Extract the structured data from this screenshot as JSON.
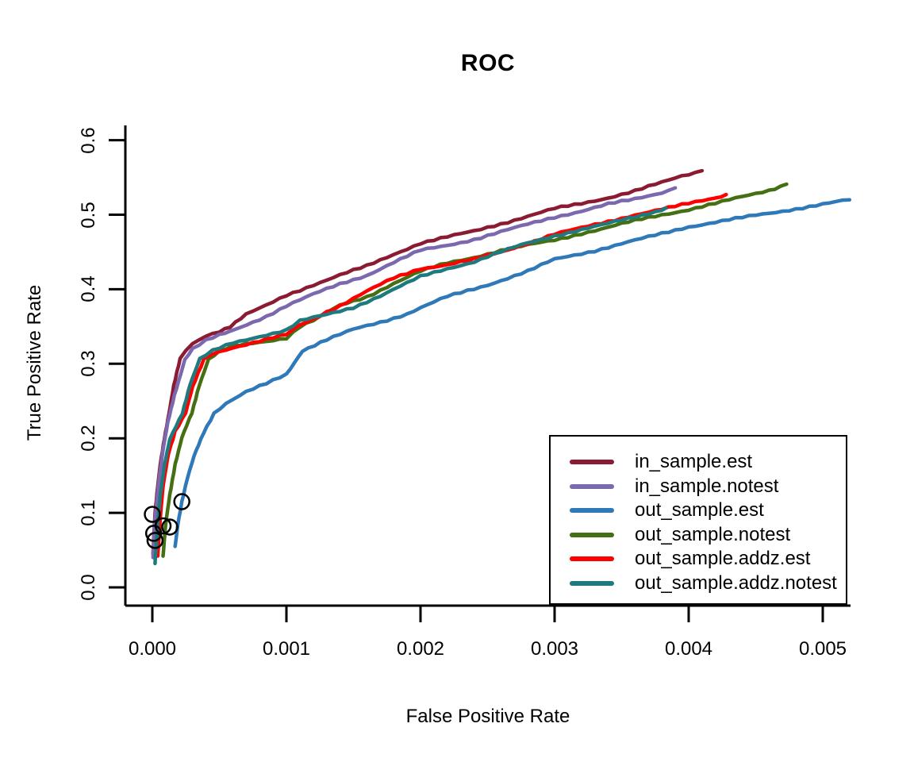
{
  "chart_data": {
    "type": "line",
    "title": "ROC",
    "xlabel": "False Positive Rate",
    "ylabel": "True Positive Rate",
    "xlim": [
      -0.0002,
      0.0052
    ],
    "ylim": [
      0.0,
      0.62
    ],
    "grid": false,
    "legend_position": "bottom-right",
    "axis_color": "#000000",
    "background_color": "#ffffff",
    "x_ticks": [
      "0.000",
      "0.001",
      "0.002",
      "0.003",
      "0.004",
      "0.005"
    ],
    "x_tick_values": [
      0.0,
      0.001,
      0.002,
      0.003,
      0.004,
      0.005
    ],
    "y_ticks": [
      "0.0",
      "0.1",
      "0.2",
      "0.3",
      "0.4",
      "0.5",
      "0.6"
    ],
    "y_tick_values": [
      0.0,
      0.1,
      0.2,
      0.3,
      0.4,
      0.5,
      0.6
    ],
    "marker_points": {
      "description": "open black circles near origin",
      "color": "#000000",
      "points": [
        [
          0.00022,
          0.115
        ],
        [
          0.0,
          0.098
        ],
        [
          8e-05,
          0.0825
        ],
        [
          0.00013,
          0.081
        ],
        [
          1e-05,
          0.0725
        ],
        [
          2e-05,
          0.063
        ]
      ]
    },
    "series": [
      {
        "name": "in_sample.est",
        "color": "#8B1A33",
        "points": [
          [
            5e-06,
            0.045
          ],
          [
            2e-05,
            0.1
          ],
          [
            4e-05,
            0.135
          ],
          [
            6e-05,
            0.165
          ],
          [
            9e-05,
            0.2
          ],
          [
            0.000124,
            0.234
          ],
          [
            0.00016,
            0.27
          ],
          [
            0.000207,
            0.306
          ],
          [
            0.00025,
            0.318
          ],
          [
            0.0003,
            0.327
          ],
          [
            0.0004,
            0.338
          ],
          [
            0.0005,
            0.344
          ],
          [
            0.00058,
            0.35
          ],
          [
            0.0007,
            0.366
          ],
          [
            0.00085,
            0.378
          ],
          [
            0.001,
            0.392
          ],
          [
            0.0012,
            0.406
          ],
          [
            0.0014,
            0.419
          ],
          [
            0.0016,
            0.431
          ],
          [
            0.0018,
            0.447
          ],
          [
            0.002,
            0.462
          ],
          [
            0.0022,
            0.47
          ],
          [
            0.0024,
            0.478
          ],
          [
            0.0026,
            0.488
          ],
          [
            0.0028,
            0.498
          ],
          [
            0.003,
            0.508
          ],
          [
            0.0032,
            0.515
          ],
          [
            0.0034,
            0.523
          ],
          [
            0.0036,
            0.532
          ],
          [
            0.0038,
            0.543
          ],
          [
            0.00395,
            0.552
          ],
          [
            0.0041,
            0.559
          ]
        ]
      },
      {
        "name": "in_sample.notest",
        "color": "#7B68AE",
        "points": [
          [
            5e-06,
            0.04
          ],
          [
            2e-05,
            0.09
          ],
          [
            5e-05,
            0.145
          ],
          [
            8e-05,
            0.185
          ],
          [
            0.000115,
            0.22
          ],
          [
            0.000165,
            0.258
          ],
          [
            0.000242,
            0.306
          ],
          [
            0.0003,
            0.32
          ],
          [
            0.0004,
            0.331
          ],
          [
            0.0005,
            0.338
          ],
          [
            0.00058,
            0.343
          ],
          [
            0.0007,
            0.352
          ],
          [
            0.00085,
            0.364
          ],
          [
            0.001,
            0.378
          ],
          [
            0.0012,
            0.393
          ],
          [
            0.0014,
            0.407
          ],
          [
            0.0016,
            0.419
          ],
          [
            0.0018,
            0.436
          ],
          [
            0.002,
            0.452
          ],
          [
            0.0022,
            0.459
          ],
          [
            0.0024,
            0.467
          ],
          [
            0.0026,
            0.477
          ],
          [
            0.0028,
            0.487
          ],
          [
            0.003,
            0.497
          ],
          [
            0.0032,
            0.505
          ],
          [
            0.0034,
            0.514
          ],
          [
            0.0036,
            0.521
          ],
          [
            0.0038,
            0.53
          ],
          [
            0.0039,
            0.536
          ]
        ]
      },
      {
        "name": "out_sample.est",
        "color": "#2F79B9",
        "points": [
          [
            0.00017,
            0.055
          ],
          [
            0.00019,
            0.085
          ],
          [
            0.00022,
            0.115
          ],
          [
            0.00026,
            0.145
          ],
          [
            0.00031,
            0.175
          ],
          [
            0.00038,
            0.207
          ],
          [
            0.00046,
            0.234
          ],
          [
            0.00055,
            0.247
          ],
          [
            0.0007,
            0.262
          ],
          [
            0.00085,
            0.273
          ],
          [
            0.001,
            0.286
          ],
          [
            0.00112,
            0.318
          ],
          [
            0.0013,
            0.332
          ],
          [
            0.0015,
            0.346
          ],
          [
            0.0017,
            0.356
          ],
          [
            0.0019,
            0.367
          ],
          [
            0.002,
            0.375
          ],
          [
            0.0022,
            0.39
          ],
          [
            0.0025,
            0.406
          ],
          [
            0.0028,
            0.424
          ],
          [
            0.003,
            0.44
          ],
          [
            0.0033,
            0.452
          ],
          [
            0.0035,
            0.461
          ],
          [
            0.0037,
            0.47
          ],
          [
            0.004,
            0.484
          ],
          [
            0.0043,
            0.493
          ],
          [
            0.0046,
            0.502
          ],
          [
            0.0049,
            0.511
          ],
          [
            0.0052,
            0.52
          ]
        ]
      },
      {
        "name": "out_sample.notest",
        "color": "#446F12",
        "points": [
          [
            8e-05,
            0.042
          ],
          [
            0.0001,
            0.085
          ],
          [
            0.00013,
            0.125
          ],
          [
            0.00017,
            0.165
          ],
          [
            0.00022,
            0.2
          ],
          [
            0.000295,
            0.234
          ],
          [
            0.00035,
            0.272
          ],
          [
            0.000419,
            0.306
          ],
          [
            0.0005,
            0.316
          ],
          [
            0.0006,
            0.323
          ],
          [
            0.0008,
            0.329
          ],
          [
            0.001,
            0.335
          ],
          [
            0.0011,
            0.35
          ],
          [
            0.0012,
            0.358
          ],
          [
            0.0014,
            0.378
          ],
          [
            0.0016,
            0.39
          ],
          [
            0.0018,
            0.408
          ],
          [
            0.002,
            0.424
          ],
          [
            0.0022,
            0.435
          ],
          [
            0.0024,
            0.443
          ],
          [
            0.0026,
            0.452
          ],
          [
            0.0028,
            0.459
          ],
          [
            0.003,
            0.466
          ],
          [
            0.0032,
            0.475
          ],
          [
            0.0034,
            0.483
          ],
          [
            0.0036,
            0.492
          ],
          [
            0.0038,
            0.5
          ],
          [
            0.004,
            0.507
          ],
          [
            0.0042,
            0.515
          ],
          [
            0.0044,
            0.524
          ],
          [
            0.0046,
            0.533
          ],
          [
            0.00473,
            0.541
          ]
        ]
      },
      {
        "name": "out_sample.addz.est",
        "color": "#FF0000",
        "points": [
          [
            4e-05,
            0.042
          ],
          [
            6e-05,
            0.095
          ],
          [
            8e-05,
            0.135
          ],
          [
            0.00012,
            0.18
          ],
          [
            0.00017,
            0.21
          ],
          [
            0.000248,
            0.234
          ],
          [
            0.0003,
            0.268
          ],
          [
            0.000384,
            0.306
          ],
          [
            0.00045,
            0.314
          ],
          [
            0.0006,
            0.322
          ],
          [
            0.0008,
            0.33
          ],
          [
            0.001,
            0.339
          ],
          [
            0.0011,
            0.352
          ],
          [
            0.0012,
            0.36
          ],
          [
            0.0013,
            0.37
          ],
          [
            0.0014,
            0.378
          ],
          [
            0.0016,
            0.397
          ],
          [
            0.0018,
            0.415
          ],
          [
            0.002,
            0.428
          ],
          [
            0.0022,
            0.433
          ],
          [
            0.0024,
            0.44
          ],
          [
            0.0026,
            0.45
          ],
          [
            0.0028,
            0.462
          ],
          [
            0.003,
            0.474
          ],
          [
            0.0032,
            0.482
          ],
          [
            0.0034,
            0.491
          ],
          [
            0.0036,
            0.5
          ],
          [
            0.0038,
            0.507
          ],
          [
            0.004,
            0.515
          ],
          [
            0.0042,
            0.523
          ],
          [
            0.00428,
            0.527
          ]
        ]
      },
      {
        "name": "out_sample.addz.notest",
        "color": "#1F7A7E",
        "points": [
          [
            2e-05,
            0.032
          ],
          [
            4e-05,
            0.085
          ],
          [
            6e-05,
            0.125
          ],
          [
            9e-05,
            0.163
          ],
          [
            0.00013,
            0.198
          ],
          [
            0.000224,
            0.234
          ],
          [
            0.00028,
            0.272
          ],
          [
            0.000354,
            0.306
          ],
          [
            0.00045,
            0.317
          ],
          [
            0.0006,
            0.328
          ],
          [
            0.0008,
            0.337
          ],
          [
            0.001,
            0.345
          ],
          [
            0.0011,
            0.357
          ],
          [
            0.0013,
            0.366
          ],
          [
            0.0015,
            0.376
          ],
          [
            0.0017,
            0.391
          ],
          [
            0.0019,
            0.408
          ],
          [
            0.002,
            0.417
          ],
          [
            0.0022,
            0.428
          ],
          [
            0.0024,
            0.437
          ],
          [
            0.0026,
            0.45
          ],
          [
            0.0028,
            0.462
          ],
          [
            0.003,
            0.472
          ],
          [
            0.0032,
            0.48
          ],
          [
            0.0034,
            0.488
          ],
          [
            0.0036,
            0.497
          ],
          [
            0.0038,
            0.507
          ],
          [
            0.00383,
            0.509
          ]
        ]
      }
    ]
  }
}
